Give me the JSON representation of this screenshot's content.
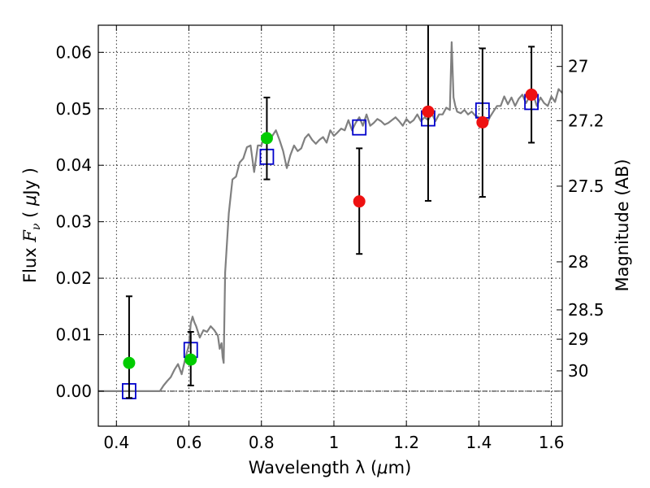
{
  "chart_data": {
    "type": "scatter",
    "xlabel_prefix": "Wavelength  λ (",
    "xlabel_unit": "μ",
    "xlabel_suffix": "m)",
    "ylabel_prefix": "Flux  ",
    "ylabel_symbol": "F",
    "ylabel_subscript": "ν",
    "ylabel_unit_open": "  (  ",
    "ylabel_unit": "μ",
    "ylabel_unit_close": "Jy  )",
    "y2label": "Magnitude (AB)",
    "xlim": [
      0.35,
      1.63
    ],
    "ylim": [
      -0.0062,
      0.0648
    ],
    "grid": true,
    "x_ticks": [
      0.4,
      0.6,
      0.8,
      1.0,
      1.2,
      1.4,
      1.6
    ],
    "x_tick_labels": [
      "0.4",
      "0.6",
      "0.8",
      "1",
      "1.2",
      "1.4",
      "1.6"
    ],
    "y_ticks": [
      0.0,
      0.01,
      0.02,
      0.03,
      0.04,
      0.05,
      0.06
    ],
    "y_tick_labels": [
      "0.00",
      "0.01",
      "0.02",
      "0.03",
      "0.04",
      "0.05",
      "0.06"
    ],
    "y2_ticks": [
      {
        "label": "27",
        "flux": 0.0575
      },
      {
        "label": "27.2",
        "flux": 0.0479
      },
      {
        "label": "27.5",
        "flux": 0.0363
      },
      {
        "label": "28",
        "flux": 0.0229
      },
      {
        "label": "28.5",
        "flux": 0.0144
      },
      {
        "label": "29",
        "flux": 0.0092
      },
      {
        "label": "30",
        "flux": 0.0036
      }
    ],
    "zero_line": 0.0,
    "model_spectrum": {
      "color": "#808080",
      "x": [
        0.35,
        0.52,
        0.53,
        0.54,
        0.55,
        0.56,
        0.57,
        0.58,
        0.59,
        0.6,
        0.605,
        0.61,
        0.615,
        0.62,
        0.63,
        0.64,
        0.65,
        0.66,
        0.67,
        0.68,
        0.685,
        0.69,
        0.693,
        0.696,
        0.7,
        0.71,
        0.72,
        0.73,
        0.74,
        0.75,
        0.76,
        0.77,
        0.78,
        0.79,
        0.8,
        0.81,
        0.82,
        0.83,
        0.84,
        0.85,
        0.86,
        0.87,
        0.88,
        0.89,
        0.9,
        0.91,
        0.92,
        0.93,
        0.94,
        0.95,
        0.96,
        0.97,
        0.98,
        0.99,
        1.0,
        1.01,
        1.02,
        1.03,
        1.04,
        1.05,
        1.06,
        1.07,
        1.08,
        1.09,
        1.1,
        1.11,
        1.12,
        1.13,
        1.14,
        1.15,
        1.16,
        1.17,
        1.18,
        1.19,
        1.2,
        1.21,
        1.22,
        1.23,
        1.24,
        1.25,
        1.26,
        1.27,
        1.28,
        1.29,
        1.3,
        1.31,
        1.32,
        1.325,
        1.33,
        1.335,
        1.34,
        1.35,
        1.36,
        1.37,
        1.38,
        1.39,
        1.4,
        1.41,
        1.42,
        1.43,
        1.44,
        1.45,
        1.46,
        1.47,
        1.48,
        1.49,
        1.5,
        1.51,
        1.52,
        1.53,
        1.54,
        1.55,
        1.56,
        1.57,
        1.58,
        1.59,
        1.6,
        1.61,
        1.62,
        1.63
      ],
      "y": [
        0.0,
        0.0,
        0.001,
        0.0018,
        0.0025,
        0.0038,
        0.0048,
        0.003,
        0.0058,
        0.0082,
        0.012,
        0.0132,
        0.0122,
        0.0115,
        0.0095,
        0.0108,
        0.0105,
        0.0115,
        0.0108,
        0.0098,
        0.0075,
        0.0085,
        0.006,
        0.005,
        0.021,
        0.0315,
        0.0375,
        0.038,
        0.0405,
        0.0412,
        0.0432,
        0.0435,
        0.0388,
        0.0435,
        0.0435,
        0.0455,
        0.0445,
        0.0452,
        0.0462,
        0.0445,
        0.0425,
        0.0395,
        0.0418,
        0.0435,
        0.0425,
        0.043,
        0.0448,
        0.0455,
        0.0445,
        0.0438,
        0.0445,
        0.045,
        0.044,
        0.0462,
        0.0452,
        0.0458,
        0.0465,
        0.0462,
        0.048,
        0.0462,
        0.0475,
        0.0485,
        0.047,
        0.049,
        0.047,
        0.0475,
        0.0482,
        0.0478,
        0.0472,
        0.0475,
        0.048,
        0.0485,
        0.0478,
        0.047,
        0.0482,
        0.0475,
        0.048,
        0.049,
        0.0478,
        0.0485,
        0.048,
        0.0492,
        0.0478,
        0.049,
        0.049,
        0.0502,
        0.0498,
        0.0618,
        0.052,
        0.0505,
        0.0495,
        0.0492,
        0.0498,
        0.049,
        0.0495,
        0.0488,
        0.0485,
        0.0482,
        0.047,
        0.0485,
        0.0495,
        0.0505,
        0.0505,
        0.0522,
        0.0508,
        0.052,
        0.0505,
        0.0518,
        0.0525,
        0.051,
        0.0522,
        0.0525,
        0.0505,
        0.052,
        0.051,
        0.0505,
        0.0522,
        0.0512,
        0.0535,
        0.0528
      ]
    },
    "model_photometry": {
      "color": "#0000cc",
      "x": [
        0.435,
        0.605,
        0.815,
        1.07,
        1.26,
        1.41,
        1.545
      ],
      "y": [
        0.0,
        0.0073,
        0.0415,
        0.0467,
        0.0483,
        0.0497,
        0.0512
      ]
    },
    "observed_green": {
      "color": "#00cc00",
      "x": [
        0.435,
        0.605,
        0.815
      ],
      "y": [
        0.005,
        0.0056,
        0.0448
      ],
      "err_low": [
        0.0062,
        0.0046,
        0.0073
      ],
      "err_high": [
        0.0118,
        0.0049,
        0.0072
      ]
    },
    "observed_red": {
      "color": "#ee1111",
      "x": [
        1.07,
        1.26,
        1.41,
        1.545
      ],
      "y": [
        0.0336,
        0.0495,
        0.0476,
        0.0525
      ],
      "err_low": [
        0.0093,
        0.0158,
        0.0132,
        0.0085
      ],
      "err_high": [
        0.0094,
        0.0155,
        0.0131,
        0.0085
      ]
    }
  }
}
